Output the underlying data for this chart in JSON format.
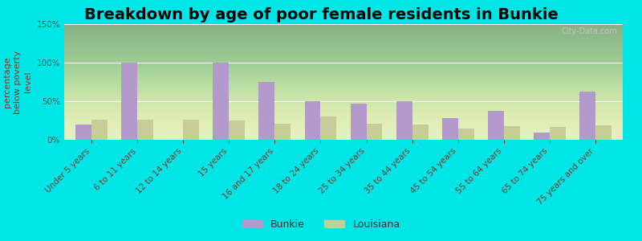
{
  "title": "Breakdown by age of poor female residents in Bunkie",
  "ylabel": "percentage\nbelow poverty\nlevel",
  "categories": [
    "Under 5 years",
    "6 to 11 years",
    "12 to 14 years",
    "15 years",
    "16 and 17 years",
    "18 to 24 years",
    "25 to 34 years",
    "35 to 44 years",
    "45 to 54 years",
    "55 to 64 years",
    "65 to 74 years",
    "75 years and over"
  ],
  "bunkie_values": [
    20,
    100,
    0,
    100,
    75,
    50,
    47,
    50,
    28,
    38,
    9,
    62
  ],
  "louisiana_values": [
    26,
    26,
    26,
    25,
    21,
    30,
    21,
    20,
    15,
    18,
    17,
    19
  ],
  "bunkie_color": "#b399cc",
  "louisiana_color": "#c8cc99",
  "background_color": "#00e5e5",
  "ylim": [
    0,
    150
  ],
  "yticks": [
    0,
    50,
    100,
    150
  ],
  "ytick_labels": [
    "0%",
    "50%",
    "100%",
    "150%"
  ],
  "title_fontsize": 14,
  "axis_label_fontsize": 8,
  "tick_fontsize": 7.5,
  "legend_labels": [
    "Bunkie",
    "Louisiana"
  ],
  "bar_width": 0.35
}
